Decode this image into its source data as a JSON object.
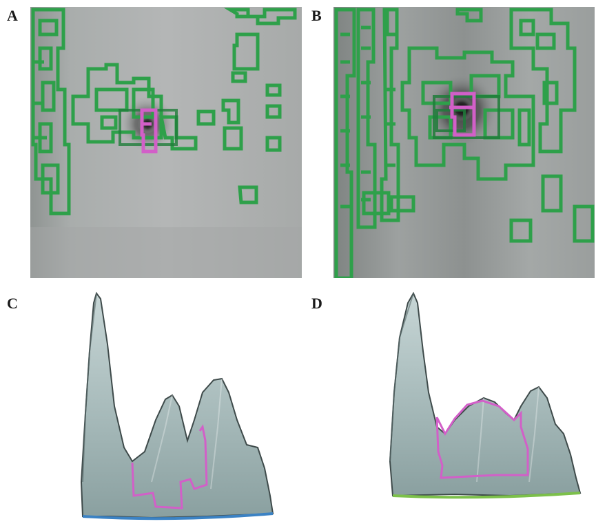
{
  "panels": [
    {
      "id": "A",
      "label": "A",
      "kind": "gel-image-with-contours",
      "contour_colors": {
        "background": "#2ea04a",
        "spot": "#d25fc8"
      }
    },
    {
      "id": "B",
      "label": "B",
      "kind": "gel-image-with-contours",
      "contour_colors": {
        "background": "#2ea04a",
        "spot": "#d25fc8"
      }
    },
    {
      "id": "C",
      "label": "C",
      "kind": "3d-surface-peaks",
      "surface_color": "#9fb8b8",
      "outline_color": "#d25fc8",
      "base_color": "#3b82c4"
    },
    {
      "id": "D",
      "label": "D",
      "kind": "3d-surface-peaks",
      "surface_color": "#9fb8b8",
      "outline_color": "#d25fc8",
      "base_color": "#7cc04a"
    }
  ]
}
